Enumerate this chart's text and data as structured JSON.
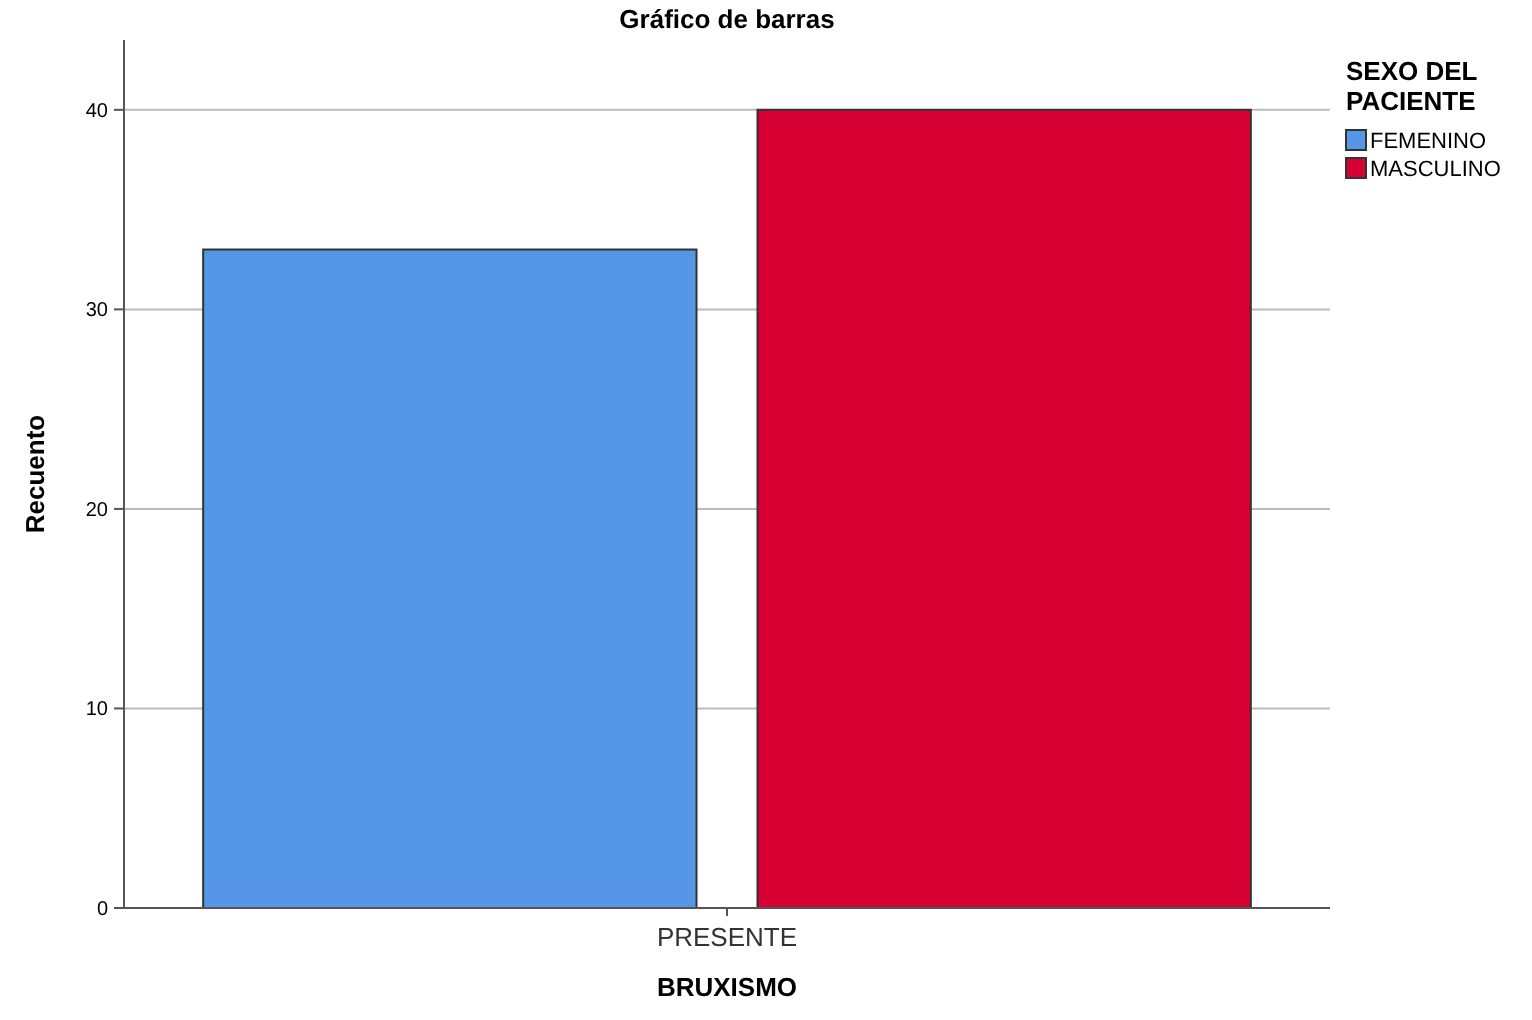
{
  "chart_data": {
    "type": "bar",
    "title": "Gráfico de barras",
    "xlabel": "BRUXISMO",
    "ylabel": "Recuento",
    "legend_title": "SEXO DEL PACIENTE",
    "categories": [
      "PRESENTE"
    ],
    "series": [
      {
        "name": "FEMENINO",
        "color": "#5596e6",
        "values": [
          33
        ]
      },
      {
        "name": "MASCULINO",
        "color": "#d60032",
        "values": [
          40
        ]
      }
    ],
    "ylim": [
      0,
      43.5
    ],
    "yticks": [
      0,
      10,
      20,
      30,
      40
    ],
    "grid": "y",
    "legend": "top right"
  }
}
